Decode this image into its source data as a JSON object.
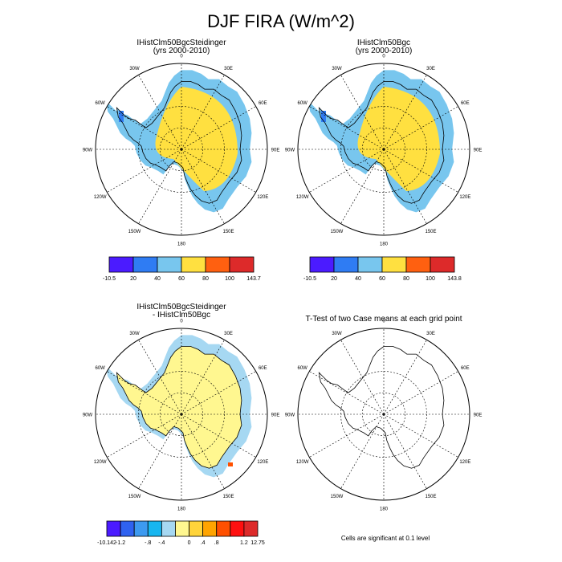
{
  "page": {
    "title": "DJF FIRA (W/m^2)"
  },
  "panels": [
    {
      "title": "IHistClm50BgcSteidinger",
      "subtitle": "(yrs 2000-2010)",
      "fill": "a"
    },
    {
      "title": "IHistClm50Bgc",
      "subtitle": "(yrs 2000-2010)",
      "fill": "a"
    },
    {
      "title": "IHistClm50BgcSteidinger",
      "subtitle": "- IHistClm50Bgc",
      "fill": "d"
    },
    {
      "title": "T-Test of two Case means at each grid point",
      "subtitle": "",
      "fill": "none"
    }
  ],
  "map_labels": [
    "0",
    "30E",
    "60E",
    "90E",
    "120E",
    "150E",
    "180",
    "150W",
    "120W",
    "90W",
    "60W",
    "30W"
  ],
  "colorbars": [
    {
      "name": "colorbar-1",
      "labels": [
        "-10.5",
        "20",
        "40",
        "60",
        "80",
        "100",
        "143.7"
      ],
      "colors": [
        "#4b1bff",
        "#2f7cf3",
        "#78c6ee",
        "#ffe040",
        "#ff6010",
        "#dd2a2a"
      ]
    },
    {
      "name": "colorbar-2",
      "labels": [
        "-10.5",
        "20",
        "40",
        "60",
        "80",
        "100",
        "143.8"
      ],
      "colors": [
        "#4b1bff",
        "#2f7cf3",
        "#78c6ee",
        "#ffe040",
        "#ff6010",
        "#dd2a2a"
      ]
    },
    {
      "name": "colorbar-diff",
      "labels": [
        "-10.142",
        "-1.2",
        "-.8",
        "-.4",
        "0",
        ".4",
        ".8",
        "1.2",
        "12.75"
      ],
      "colors": [
        "#4b1bff",
        "#2f62f0",
        "#3d9af0",
        "#17b6f0",
        "#a6d8f2",
        "#fff790",
        "#ffd43a",
        "#ffa400",
        "#ff5000",
        "#ff1010",
        "#dd2a2a"
      ]
    }
  ],
  "footnote": "Cells are significant at 0.1 level",
  "colors": {
    "ice": "#ffe040",
    "coast": "#78c6ee",
    "edge": "#2f7cf3",
    "deep": "#4b1bff",
    "diff_main": "#fff790",
    "diff_blue": "#a6d8f2",
    "diff_red": "#ff5000"
  }
}
